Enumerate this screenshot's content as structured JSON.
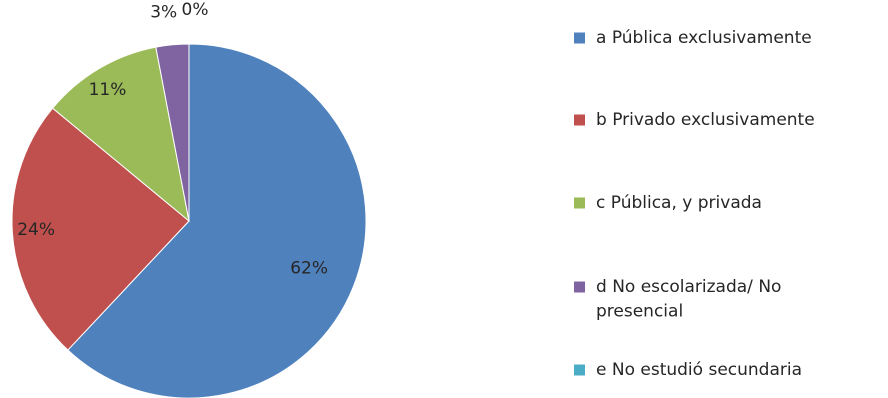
{
  "chart_data": {
    "type": "pie",
    "title": "",
    "slices": [
      {
        "label": "a Pública exclusivamente",
        "value": 62,
        "display": "62%",
        "color": "#4F81BD"
      },
      {
        "label": "b Privado exclusivamente",
        "value": 24,
        "display": "24%",
        "color": "#C0504D"
      },
      {
        "label": "c Pública, y privada",
        "value": 11,
        "display": "11%",
        "color": "#9BBB59"
      },
      {
        "label": "d No escolarizada/ No presencial",
        "value": 3,
        "display": "3%",
        "color": "#8064A2"
      },
      {
        "label": "e No estudió secundaria",
        "value": 0,
        "display": "0%",
        "color": "#4BACC6"
      }
    ],
    "legend": "right"
  }
}
